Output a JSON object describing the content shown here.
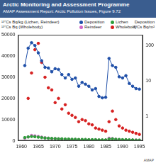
{
  "chart_data": {
    "type": "scatter",
    "title": "Arctic Monitoring and Assessment Programme",
    "subtitle": "AMAP Assessment Report: Arctic Pollution Issues, Figure 9.72",
    "footer": "AMAP",
    "y_label": [
      "¹³⁷Cs Bq/kg (Lichen, Reindeer)",
      "¹³⁷Cs Bq (Wholebody)"
    ],
    "y2_label": [
      "Deposition",
      "¹³⁷Cs Bq/m²"
    ],
    "x": [
      1961,
      1962,
      1963,
      1964,
      1965,
      1966,
      1967,
      1968,
      1969,
      1970,
      1971,
      1972,
      1973,
      1974,
      1975,
      1976,
      1977,
      1978,
      1979,
      1980,
      1981,
      1982,
      1983,
      1984,
      1985,
      1986,
      1987,
      1988,
      1989,
      1990,
      1991,
      1992,
      1993,
      1994,
      1995
    ],
    "xlim": [
      1959,
      1996
    ],
    "xticks": [
      1960,
      1965,
      1970,
      1975,
      1980,
      1985,
      1990,
      1995
    ],
    "ylim": [
      0,
      50000
    ],
    "yticks": [
      0,
      10000,
      20000,
      30000,
      40000,
      50000
    ],
    "y2lim": [
      0.2,
      200
    ],
    "y2ticks": [
      1,
      10,
      100
    ],
    "log": "y2",
    "grid": false,
    "series": [
      {
        "name": "Deposition",
        "color": "#1f4fa8",
        "axis": "y2",
        "marker": "circle",
        "line_style": "solid",
        "values": [
          27,
          84,
          120,
          100,
          62,
          37,
          24,
          23,
          18,
          22,
          21,
          15,
          12,
          15,
          11,
          12,
          7,
          9,
          8,
          7,
          5.5,
          6,
          3.6,
          3.3,
          3.4,
          43,
          27,
          24,
          13,
          12,
          14,
          8.4,
          7,
          6,
          5.8
        ]
      },
      {
        "name": "Lichen",
        "color": "#2e9e3a",
        "marker": "circle",
        "line_style": "none",
        "values": [
          1500,
          1800,
          2000,
          1900,
          1700,
          1500,
          1300,
          1200,
          1100,
          1000,
          900,
          900,
          800,
          800,
          700,
          700,
          600,
          600,
          600,
          500,
          500,
          500,
          400,
          400,
          400,
          800,
          900,
          700,
          600,
          500,
          500,
          400,
          400,
          300,
          300
        ]
      },
      {
        "name": "Reindeer",
        "color": "#d067c8",
        "marker": "circle",
        "line_style": "none",
        "values": [
          1200,
          1800,
          2500,
          2300,
          2000,
          1700,
          1400,
          1200,
          1000,
          1000,
          900,
          800,
          700,
          700,
          600,
          600,
          500,
          500,
          500,
          400,
          400,
          400,
          300,
          300,
          300,
          1200,
          1000,
          700,
          500,
          400,
          400,
          300,
          300,
          300,
          200
        ]
      },
      {
        "name": "Wholebody",
        "color": "#d62020",
        "marker": "circle",
        "line_style": "none",
        "values": [
          null,
          20000,
          32000,
          43000,
          46000,
          37000,
          30000,
          25000,
          24000,
          18000,
          20000,
          15000,
          17000,
          13000,
          12000,
          11000,
          9000,
          10000,
          9500,
          8000,
          7500,
          6000,
          5500,
          5000,
          4500,
          9000,
          14000,
          10000,
          7000,
          6000,
          5000,
          4500,
          4000,
          3500,
          3000
        ]
      }
    ]
  }
}
